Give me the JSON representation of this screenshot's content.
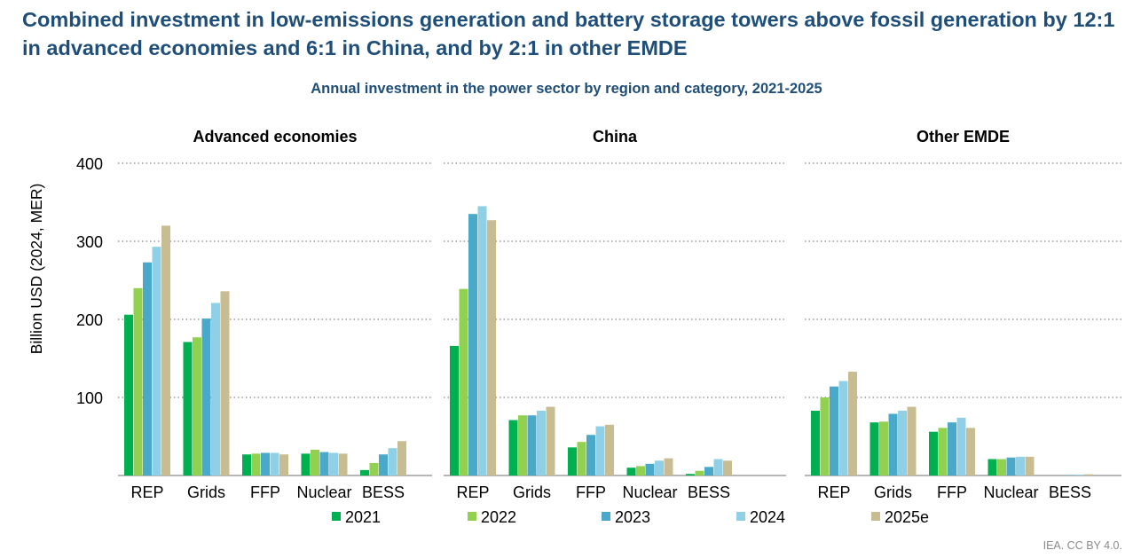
{
  "header": {
    "headline": "Combined investment in low-emissions generation and battery storage towers above fossil generation by 12:1 in advanced economies and 6:1 in China, and by 2:1 in other EMDE",
    "subtitle": "Annual investment in the power sector by region and category, 2021-2025"
  },
  "footer": {
    "credit": "IEA. CC BY 4.0."
  },
  "chart_data": {
    "type": "bar",
    "title": "Annual investment in the power sector by region and category, 2021-2025",
    "ylabel": "Billion USD (2024, MER)",
    "ylim": [
      0,
      400
    ],
    "yticks": [
      100,
      200,
      300,
      400
    ],
    "grid": true,
    "legend_position": "bottom",
    "categories": [
      "REP",
      "Grids",
      "FFP",
      "Nuclear",
      "BESS"
    ],
    "series_names": [
      "2021",
      "2022",
      "2023",
      "2024",
      "2025e"
    ],
    "colors": [
      "#00b050",
      "#92d050",
      "#4aa8c8",
      "#8fd0e6",
      "#c8bc92"
    ],
    "panels": [
      {
        "name": "Advanced economies",
        "series": [
          {
            "name": "2021",
            "values": [
              206,
              171,
              27,
              28,
              7
            ]
          },
          {
            "name": "2022",
            "values": [
              240,
              177,
              28,
              33,
              16
            ]
          },
          {
            "name": "2023",
            "values": [
              273,
              201,
              29,
              30,
              27
            ]
          },
          {
            "name": "2024",
            "values": [
              293,
              221,
              29,
              29,
              35
            ]
          },
          {
            "name": "2025e",
            "values": [
              320,
              236,
              27,
              28,
              44
            ]
          }
        ]
      },
      {
        "name": "China",
        "series": [
          {
            "name": "2021",
            "values": [
              166,
              71,
              36,
              10,
              2
            ]
          },
          {
            "name": "2022",
            "values": [
              239,
              77,
              43,
              12,
              6
            ]
          },
          {
            "name": "2023",
            "values": [
              335,
              77,
              52,
              15,
              11
            ]
          },
          {
            "name": "2024",
            "values": [
              345,
              83,
              63,
              19,
              21
            ]
          },
          {
            "name": "2025e",
            "values": [
              327,
              88,
              65,
              22,
              19
            ]
          }
        ]
      },
      {
        "name": "Other EMDE",
        "series": [
          {
            "name": "2021",
            "values": [
              83,
              68,
              56,
              21,
              0
            ]
          },
          {
            "name": "2022",
            "values": [
              100,
              69,
              61,
              21,
              0
            ]
          },
          {
            "name": "2023",
            "values": [
              114,
              79,
              68,
              23,
              0.5
            ]
          },
          {
            "name": "2024",
            "values": [
              121,
              83,
              74,
              24,
              1
            ]
          },
          {
            "name": "2025e",
            "values": [
              133,
              88,
              61,
              24,
              1.5
            ]
          }
        ]
      }
    ]
  }
}
